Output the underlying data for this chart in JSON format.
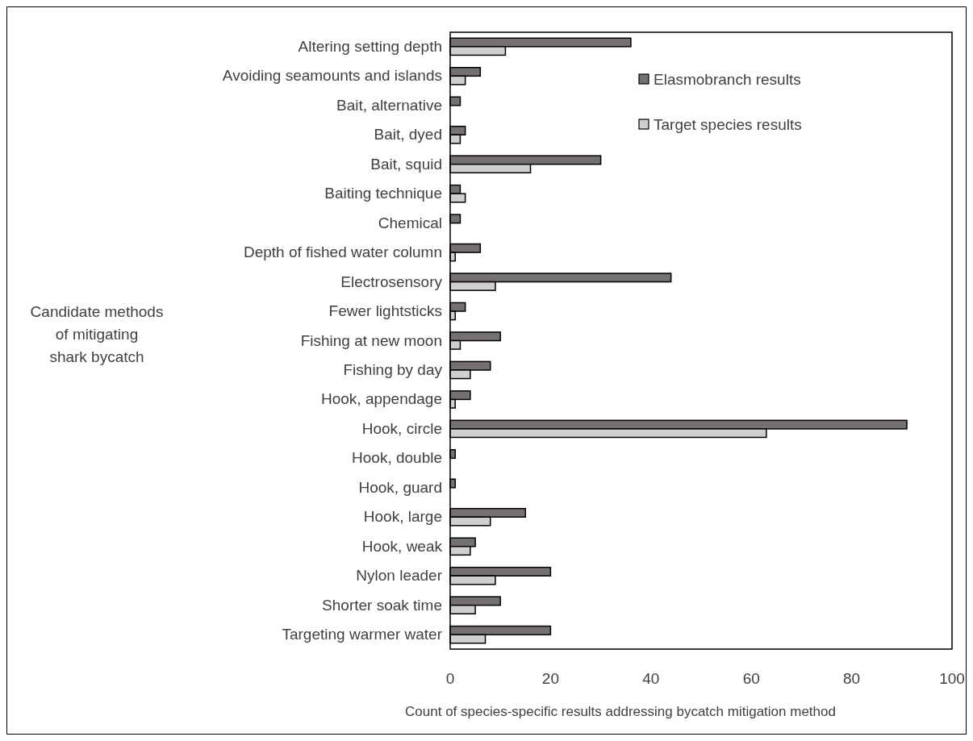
{
  "chart_data": {
    "type": "bar",
    "orientation": "horizontal",
    "ylabel": "Candidate methods of mitigating shark bycatch",
    "xlabel": "Count of species-specific results addressing bycatch mitigation method",
    "categories": [
      "Altering setting depth",
      "Avoiding seamounts and islands",
      "Bait, alternative",
      "Bait, dyed",
      "Bait, squid",
      "Baiting technique",
      "Chemical",
      "Depth of fished water column",
      "Electrosensory",
      "Fewer lightsticks",
      "Fishing at new moon",
      "Fishing by day",
      "Hook, appendage",
      "Hook, circle",
      "Hook, double",
      "Hook, guard",
      "Hook, large",
      "Hook, weak",
      "Nylon leader",
      "Shorter soak time",
      "Targeting warmer water"
    ],
    "series": [
      {
        "name": "Elasmobranch results",
        "color": "#757171",
        "values": [
          36,
          6,
          2,
          3,
          30,
          2,
          2,
          6,
          44,
          3,
          10,
          8,
          4,
          91,
          1,
          1,
          15,
          5,
          20,
          10,
          20
        ]
      },
      {
        "name": "Target species results",
        "color": "#d0cece",
        "values": [
          11,
          3,
          0,
          2,
          16,
          3,
          0,
          1,
          9,
          1,
          2,
          4,
          1,
          63,
          0,
          0,
          8,
          4,
          9,
          5,
          7
        ]
      }
    ],
    "xlim": [
      0,
      100
    ],
    "xticks": [
      0,
      20,
      40,
      60,
      80,
      100
    ],
    "grid": false,
    "legend": "top right"
  }
}
